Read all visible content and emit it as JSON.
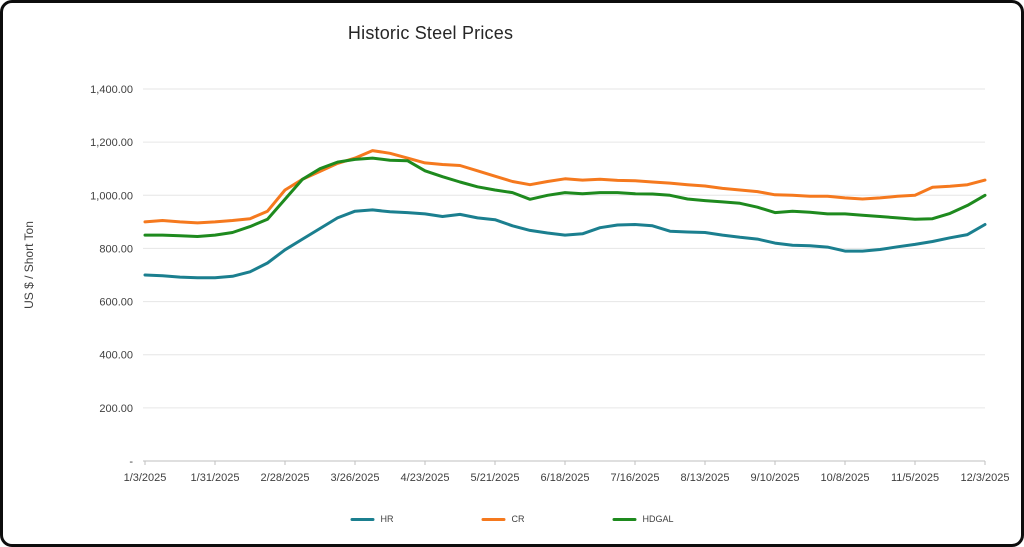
{
  "chart_data": {
    "type": "line",
    "title": "Historic Steel Prices",
    "ylabel": "US $ / Short Ton",
    "xlabel": "",
    "ylim": [
      0,
      1400
    ],
    "grid": true,
    "legend_position": "bottom",
    "yticks": [
      {
        "value": 0,
        "label": "-"
      },
      {
        "value": 200,
        "label": "200.00"
      },
      {
        "value": 400,
        "label": "400.00"
      },
      {
        "value": 600,
        "label": "600.00"
      },
      {
        "value": 800,
        "label": "800.00"
      },
      {
        "value": 1000,
        "label": "1,000.00"
      },
      {
        "value": 1200,
        "label": "1,200.00"
      },
      {
        "value": 1400,
        "label": "1,400.00"
      }
    ],
    "x": [
      "1/3/2025",
      "1/10/2025",
      "1/17/2025",
      "1/24/2025",
      "1/31/2025",
      "2/7/2025",
      "2/14/2025",
      "2/21/2025",
      "2/28/2025",
      "3/5/2025",
      "3/12/2025",
      "3/19/2025",
      "3/26/2025",
      "4/2/2025",
      "4/9/2025",
      "4/16/2025",
      "4/23/2025",
      "4/30/2025",
      "5/7/2025",
      "5/14/2025",
      "5/21/2025",
      "5/28/2025",
      "6/4/2025",
      "6/11/2025",
      "6/18/2025",
      "6/25/2025",
      "7/2/2025",
      "7/9/2025",
      "7/16/2025",
      "7/23/2025",
      "7/30/2025",
      "8/6/2025",
      "8/13/2025",
      "8/20/2025",
      "8/27/2025",
      "9/3/2025",
      "9/10/2025",
      "9/17/2025",
      "9/24/2025",
      "10/1/2025",
      "10/8/2025",
      "10/15/2025",
      "10/22/2025",
      "10/29/2025",
      "11/5/2025",
      "11/12/2025",
      "11/19/2025",
      "11/26/2025",
      "12/3/2025"
    ],
    "x_label_indices": [
      0,
      4,
      8,
      12,
      16,
      20,
      24,
      28,
      32,
      36,
      40,
      44,
      48
    ],
    "x_labels": [
      "1/3/2025",
      "1/31/2025",
      "2/28/2025",
      "3/26/2025",
      "4/23/2025",
      "5/21/2025",
      "6/18/2025",
      "7/16/2025",
      "8/13/2025",
      "9/10/2025",
      "10/8/2025",
      "11/5/2025",
      "12/3/2025"
    ],
    "series": [
      {
        "name": "HR",
        "color": "#1b7f8f",
        "values": [
          700,
          697,
          692,
          690,
          690,
          695,
          712,
          745,
          795,
          835,
          875,
          915,
          940,
          945,
          938,
          935,
          930,
          920,
          928,
          915,
          908,
          885,
          868,
          858,
          850,
          855,
          878,
          888,
          890,
          885,
          865,
          862,
          860,
          850,
          842,
          835,
          820,
          812,
          810,
          805,
          790,
          790,
          796,
          806,
          815,
          826,
          840,
          852,
          890
        ]
      },
      {
        "name": "CR",
        "color": "#f5791e",
        "values": [
          900,
          905,
          900,
          896,
          900,
          905,
          912,
          940,
          1020,
          1060,
          1090,
          1120,
          1140,
          1168,
          1158,
          1140,
          1122,
          1116,
          1112,
          1092,
          1072,
          1052,
          1040,
          1052,
          1062,
          1057,
          1060,
          1056,
          1055,
          1050,
          1046,
          1040,
          1035,
          1026,
          1020,
          1014,
          1002,
          1000,
          996,
          996,
          990,
          986,
          990,
          996,
          1000,
          1030,
          1034,
          1040,
          1057
        ]
      },
      {
        "name": "HDGAL",
        "color": "#1e8a1e",
        "values": [
          850,
          850,
          848,
          845,
          850,
          860,
          882,
          910,
          985,
          1060,
          1100,
          1125,
          1135,
          1140,
          1132,
          1130,
          1092,
          1070,
          1050,
          1032,
          1020,
          1010,
          985,
          1000,
          1010,
          1006,
          1010,
          1010,
          1006,
          1005,
          1000,
          986,
          980,
          975,
          970,
          955,
          935,
          940,
          936,
          930,
          930,
          925,
          920,
          915,
          910,
          912,
          932,
          962,
          1000
        ]
      }
    ]
  }
}
